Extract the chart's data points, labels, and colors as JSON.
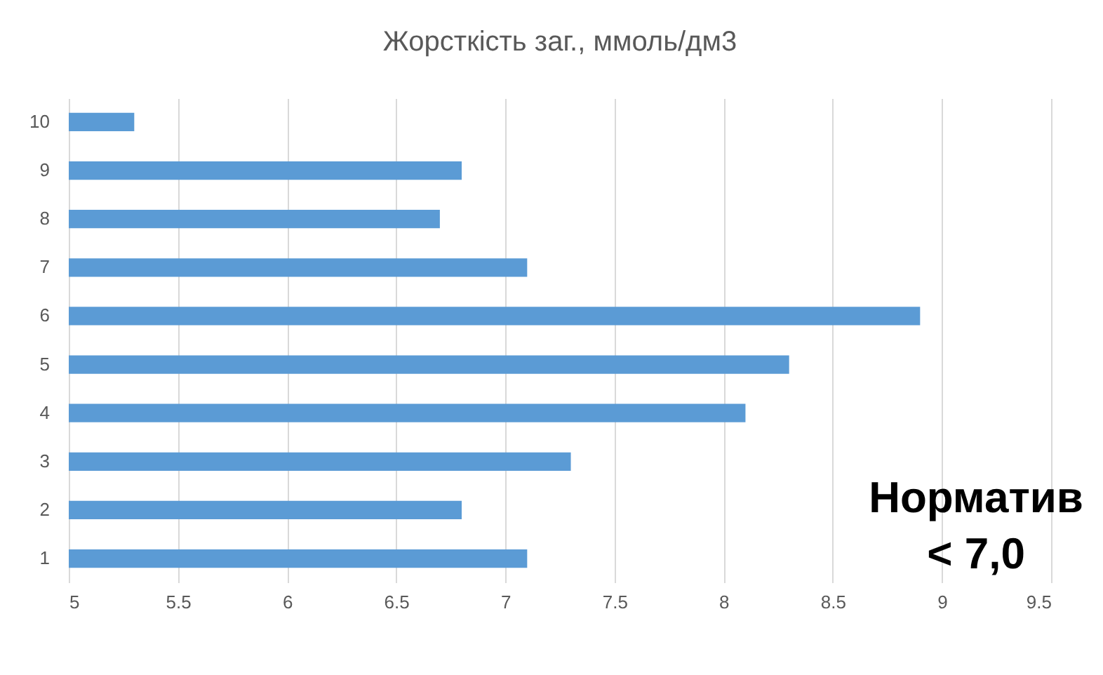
{
  "chart_data": {
    "type": "bar",
    "orientation": "horizontal",
    "title": "Жорсткість заг.,  ммоль/дм3",
    "categories": [
      "10",
      "9",
      "8",
      "7",
      "6",
      "5",
      "4",
      "3",
      "2",
      "1"
    ],
    "values": [
      5.3,
      6.8,
      6.7,
      7.1,
      8.9,
      8.3,
      8.1,
      7.3,
      6.8,
      7.1
    ],
    "color": "#5b9bd5",
    "xlim": [
      5,
      9.5
    ],
    "xticks": [
      5,
      5.5,
      6,
      6.5,
      7,
      7.5,
      8,
      8.5,
      9,
      9.5
    ],
    "grid": "x",
    "annotations": [
      "Норматив",
      "< 7,0"
    ]
  }
}
